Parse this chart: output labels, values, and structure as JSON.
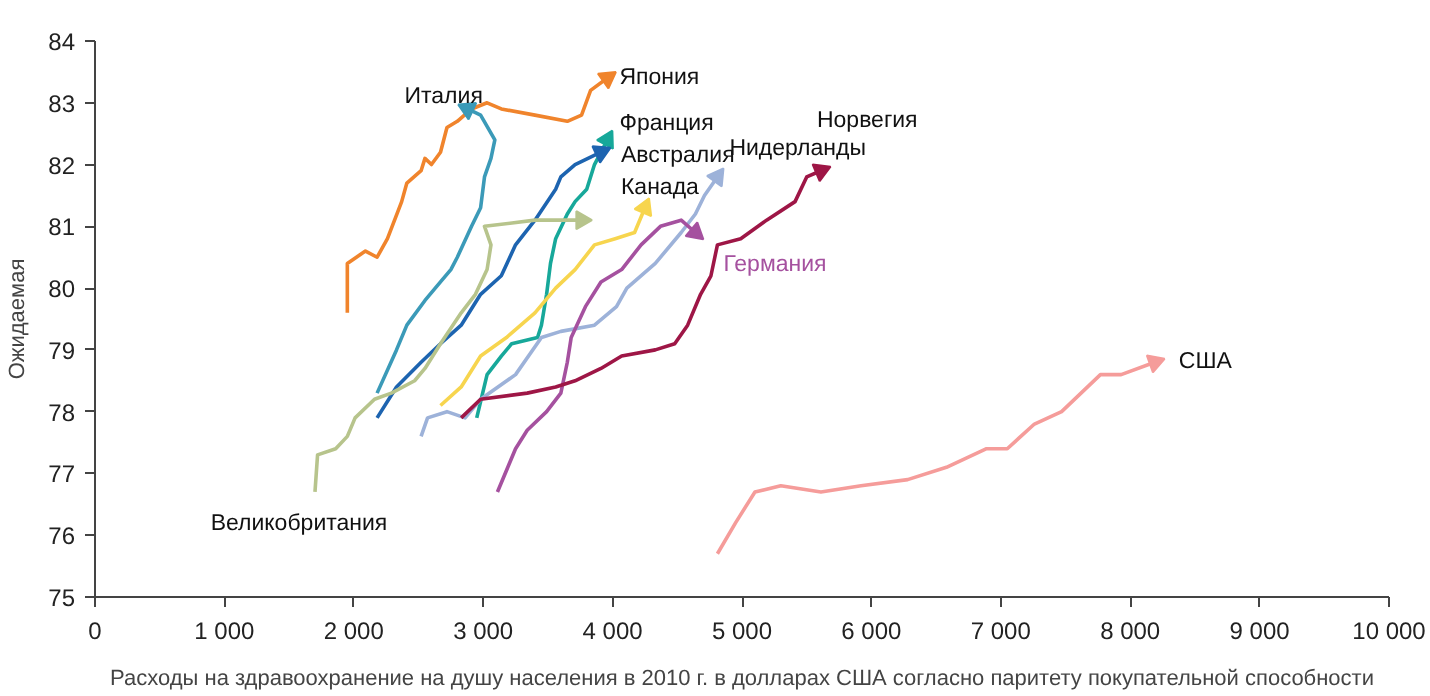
{
  "chart_data": {
    "type": "line",
    "xlabel": "Расходы на здравоохранение на душу населения в 2010 г. в долларах США согласно паритету покупательной способности",
    "ylabel": "Ожидаемая",
    "xlim": [
      0,
      10000
    ],
    "ylim": [
      75,
      84
    ],
    "xticks": [
      0,
      {
        "value": 1000,
        "label": "1 000"
      },
      {
        "value": 2000,
        "label": "2 000"
      },
      {
        "value": 3000,
        "label": "3 000"
      },
      {
        "value": 4000,
        "label": "4 000"
      },
      {
        "value": 5000,
        "label": "5 000"
      },
      {
        "value": 6000,
        "label": "6 000"
      },
      {
        "value": 7000,
        "label": "7 000"
      },
      {
        "value": 8000,
        "label": "8 000"
      },
      {
        "value": 9000,
        "label": "9 000"
      },
      {
        "value": 10000,
        "label": "10 000"
      }
    ],
    "yticks": [
      75,
      76,
      77,
      78,
      79,
      80,
      81,
      82,
      83,
      84
    ],
    "grid": false,
    "marker": "none",
    "line_style": "solid",
    "series": [
      {
        "name": "Япония",
        "color": "#f0842c",
        "x": [
          1950,
          1950,
          2090,
          2180,
          2260,
          2370,
          2410,
          2520,
          2550,
          2600,
          2670,
          2720,
          2800,
          2910,
          3030,
          3140,
          3400,
          3650,
          3760,
          3830,
          3960
        ],
        "values": [
          79.6,
          80.4,
          80.6,
          80.5,
          80.8,
          81.4,
          81.7,
          81.9,
          82.1,
          82.0,
          82.2,
          82.6,
          82.7,
          82.9,
          83.0,
          82.9,
          82.8,
          82.7,
          82.8,
          83.2,
          83.4
        ]
      },
      {
        "name": "Италия",
        "color": "#3b9ab8",
        "x": [
          2180,
          2330,
          2410,
          2550,
          2670,
          2750,
          2800,
          2910,
          2980,
          3010,
          3060,
          3090,
          2980,
          2880
        ],
        "values": [
          78.3,
          79.0,
          79.4,
          79.8,
          80.1,
          80.3,
          80.5,
          81.0,
          81.3,
          81.8,
          82.1,
          82.4,
          82.8,
          82.9
        ]
      },
      {
        "name": "Франция",
        "color": "#17a89a",
        "x": [
          2950,
          3030,
          3140,
          3220,
          3420,
          3450,
          3490,
          3520,
          3560,
          3650,
          3710,
          3800,
          3860,
          3960
        ],
        "values": [
          77.9,
          78.6,
          78.9,
          79.1,
          79.2,
          79.4,
          79.9,
          80.4,
          80.8,
          81.2,
          81.4,
          81.6,
          82.0,
          82.4
        ]
      },
      {
        "name": "Австралия",
        "color": "#1d64b0",
        "x": [
          2180,
          2330,
          2520,
          2670,
          2830,
          2980,
          3140,
          3250,
          3400,
          3560,
          3600,
          3710,
          3910
        ],
        "values": [
          77.9,
          78.4,
          78.8,
          79.1,
          79.4,
          79.9,
          80.2,
          80.7,
          81.1,
          81.6,
          81.8,
          82.0,
          82.2
        ]
      },
      {
        "name": "Великобритания",
        "color": "#b7c48c",
        "x": [
          1700,
          1720,
          1860,
          1950,
          2010,
          2160,
          2290,
          2470,
          2550,
          2670,
          2830,
          2940,
          3030,
          3060,
          3010,
          3400,
          3760
        ],
        "values": [
          76.7,
          77.3,
          77.4,
          77.6,
          77.9,
          78.2,
          78.3,
          78.5,
          78.7,
          79.1,
          79.6,
          79.9,
          80.3,
          80.7,
          81.0,
          81.1,
          81.1
        ]
      },
      {
        "name": "Канада",
        "color": "#f7d54e",
        "x": [
          2670,
          2830,
          2980,
          3180,
          3400,
          3560,
          3710,
          3860,
          4020,
          4170,
          4250
        ],
        "values": [
          78.1,
          78.4,
          78.9,
          79.2,
          79.6,
          80.0,
          80.3,
          80.7,
          80.8,
          80.9,
          81.3
        ]
      },
      {
        "name": "Нидерланды",
        "color": "#9db2d9",
        "x": [
          2520,
          2570,
          2720,
          2860,
          2980,
          3250,
          3450,
          3600,
          3860,
          4030,
          4110,
          4330,
          4530,
          4640,
          4710,
          4810
        ],
        "values": [
          77.6,
          77.9,
          78.0,
          77.9,
          78.2,
          78.6,
          79.2,
          79.3,
          79.4,
          79.7,
          80.0,
          80.4,
          80.9,
          81.2,
          81.5,
          81.8
        ]
      },
      {
        "name": "Германия",
        "color": "#a5519f",
        "x": [
          3110,
          3250,
          3340,
          3490,
          3600,
          3650,
          3680,
          3790,
          3910,
          4070,
          4220,
          4370,
          4530,
          4640
        ],
        "values": [
          76.7,
          77.4,
          77.7,
          78.0,
          78.3,
          78.8,
          79.2,
          79.7,
          80.1,
          80.3,
          80.7,
          81.0,
          81.1,
          80.9
        ]
      },
      {
        "name": "Норвегия",
        "color": "#9e1646",
        "x": [
          2830,
          2980,
          3340,
          3560,
          3710,
          3910,
          4070,
          4330,
          4480,
          4580,
          4680,
          4760,
          4810,
          4990,
          5190,
          5410,
          5500,
          5610
        ],
        "values": [
          77.9,
          78.2,
          78.3,
          78.4,
          78.5,
          78.7,
          78.9,
          79.0,
          79.1,
          79.4,
          79.9,
          80.2,
          80.7,
          80.8,
          81.1,
          81.4,
          81.8,
          81.9
        ]
      },
      {
        "name": "США",
        "color": "#f59c9a",
        "x": [
          4810,
          4950,
          5100,
          5300,
          5610,
          5920,
          6280,
          6580,
          6890,
          7050,
          7260,
          7470,
          7770,
          7930,
          8190
        ],
        "values": [
          75.7,
          76.2,
          76.7,
          76.8,
          76.7,
          76.8,
          76.9,
          77.1,
          77.4,
          77.4,
          77.8,
          78.0,
          78.6,
          78.6,
          78.8
        ]
      }
    ]
  }
}
